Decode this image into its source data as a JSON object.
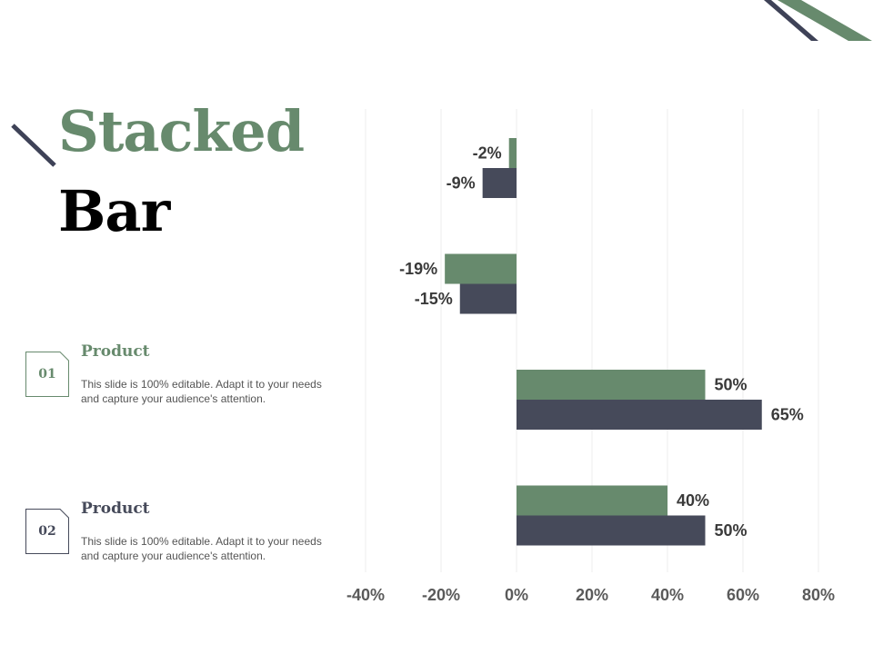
{
  "slide": {
    "title_line1": "Stacked",
    "title_line2": "Bar",
    "colors": {
      "green": "#678a6d",
      "dark": "#464a5a",
      "accent_dark": "#3e4257"
    }
  },
  "items": [
    {
      "number": "01",
      "heading": "Product",
      "description": "This slide is 100% editable. Adapt it to your needs and capture your audience's attention.",
      "color": "#678a6d"
    },
    {
      "number": "02",
      "heading": "Product",
      "description": "This slide is 100% editable. Adapt it to your needs and capture your audience's attention.",
      "color": "#464a5a"
    }
  ],
  "chart_data": {
    "type": "bar",
    "orientation": "horizontal",
    "grid": true,
    "xlim": [
      -40,
      80
    ],
    "x_ticks": [
      "-40%",
      "-20%",
      "0%",
      "20%",
      "40%",
      "60%",
      "80%"
    ],
    "x_tick_values": [
      -40,
      -20,
      0,
      20,
      40,
      60,
      80
    ],
    "series": [
      {
        "color": "#678a6d",
        "values": [
          -2,
          -19,
          50,
          40
        ],
        "labels": [
          "-2%",
          "-19%",
          "50%",
          "40%"
        ]
      },
      {
        "color": "#464a5a",
        "values": [
          -9,
          -15,
          65,
          50
        ],
        "labels": [
          "-9%",
          "-15%",
          "65%",
          "50%"
        ]
      }
    ]
  }
}
